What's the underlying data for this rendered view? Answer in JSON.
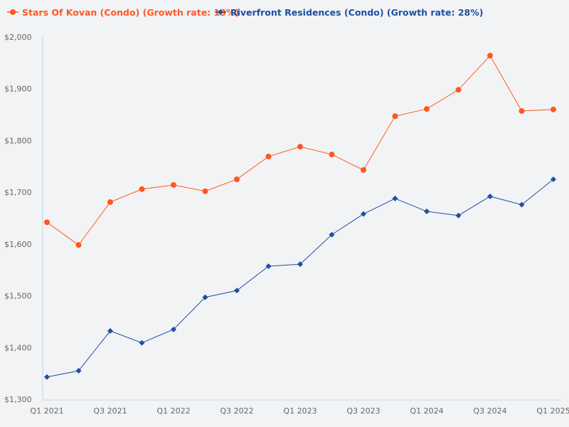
{
  "chart_data": {
    "type": "line",
    "categories": [
      "Q1 2021",
      "Q2 2021",
      "Q3 2021",
      "Q4 2021",
      "Q1 2022",
      "Q2 2022",
      "Q3 2022",
      "Q4 2022",
      "Q1 2023",
      "Q2 2023",
      "Q3 2023",
      "Q4 2023",
      "Q1 2024",
      "Q2 2024",
      "Q3 2024",
      "Q4 2024",
      "Q1 2025"
    ],
    "x_tick_labels": [
      "Q1 2021",
      "Q3 2021",
      "Q1 2022",
      "Q3 2022",
      "Q1 2023",
      "Q3 2023",
      "Q1 2024",
      "Q3 2024",
      "Q1 2025"
    ],
    "y_tick_labels": [
      "$1,300",
      "$1,400",
      "$1,500",
      "$1,600",
      "$1,700",
      "$1,800",
      "$1,900",
      "$2,000"
    ],
    "ylim": [
      1300,
      2000
    ],
    "y_ticks": [
      1300,
      1400,
      1500,
      1600,
      1700,
      1800,
      1900,
      2000
    ],
    "grid": false,
    "legend_position": "top-left",
    "series": [
      {
        "name": "Stars Of Kovan (Condo) (Growth rate: 13%)",
        "color": "#ff5722",
        "marker": "circle",
        "values": [
          1642,
          1598,
          1681,
          1706,
          1714,
          1702,
          1725,
          1769,
          1788,
          1773,
          1743,
          1847,
          1861,
          1898,
          1964,
          1857,
          1860
        ]
      },
      {
        "name": "Riverfront Residences (Condo) (Growth rate: 28%)",
        "color": "#1e4fa0",
        "marker": "diamond",
        "values": [
          1343,
          1355,
          1432,
          1409,
          1435,
          1497,
          1510,
          1557,
          1561,
          1618,
          1658,
          1688,
          1663,
          1655,
          1692,
          1676,
          1725
        ]
      }
    ]
  }
}
